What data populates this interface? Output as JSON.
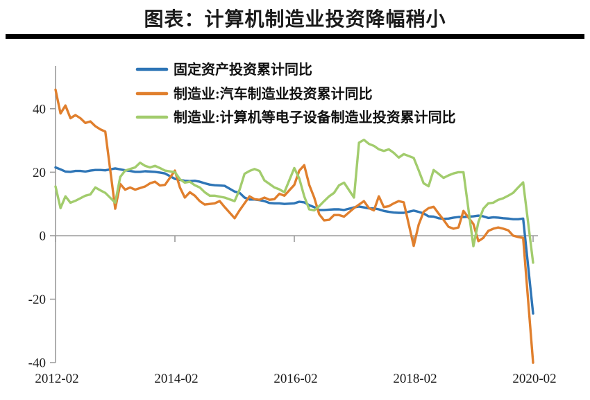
{
  "title": "图表：计算机制造业投资降幅稍小",
  "chart_data": {
    "type": "line",
    "title": "图表：计算机制造业投资降幅稍小",
    "xlabel": "",
    "ylabel": "",
    "ylim": [
      -40,
      50
    ],
    "y_ticks": [
      -40,
      -20,
      0,
      20,
      40
    ],
    "x_ticks": [
      "2012-02",
      "2014-02",
      "2016-02",
      "2018-02",
      "2020-02"
    ],
    "grid": "zero-line-only",
    "legend_position": "top-left-inside",
    "x": [
      "2012-02",
      "2012-03",
      "2012-04",
      "2012-05",
      "2012-06",
      "2012-07",
      "2012-08",
      "2012-09",
      "2012-10",
      "2012-11",
      "2012-12",
      "2013-02",
      "2013-03",
      "2013-04",
      "2013-05",
      "2013-06",
      "2013-07",
      "2013-08",
      "2013-09",
      "2013-10",
      "2013-11",
      "2013-12",
      "2014-02",
      "2014-03",
      "2014-04",
      "2014-05",
      "2014-06",
      "2014-07",
      "2014-08",
      "2014-09",
      "2014-10",
      "2014-11",
      "2014-12",
      "2015-02",
      "2015-03",
      "2015-04",
      "2015-05",
      "2015-06",
      "2015-07",
      "2015-08",
      "2015-09",
      "2015-10",
      "2015-11",
      "2015-12",
      "2016-02",
      "2016-03",
      "2016-04",
      "2016-05",
      "2016-06",
      "2016-07",
      "2016-08",
      "2016-09",
      "2016-10",
      "2016-11",
      "2016-12",
      "2017-02",
      "2017-03",
      "2017-04",
      "2017-05",
      "2017-06",
      "2017-07",
      "2017-08",
      "2017-09",
      "2017-10",
      "2017-11",
      "2017-12",
      "2018-02",
      "2018-03",
      "2018-04",
      "2018-05",
      "2018-06",
      "2018-07",
      "2018-08",
      "2018-09",
      "2018-10",
      "2018-11",
      "2018-12",
      "2019-02",
      "2019-03",
      "2019-04",
      "2019-05",
      "2019-06",
      "2019-07",
      "2019-08",
      "2019-09",
      "2019-10",
      "2019-11",
      "2019-12",
      "2020-02"
    ],
    "series": [
      {
        "name": "固定资产投资累计同比",
        "color": "#2e75b6",
        "values": [
          21.5,
          20.9,
          20.2,
          20.1,
          20.4,
          20.4,
          20.2,
          20.5,
          20.7,
          20.7,
          20.6,
          21.2,
          20.9,
          20.6,
          20.4,
          20.1,
          20.1,
          20.3,
          20.2,
          20.1,
          19.9,
          19.6,
          17.9,
          17.6,
          17.3,
          17.2,
          17.3,
          17.0,
          16.5,
          16.1,
          15.9,
          15.8,
          15.7,
          13.9,
          13.5,
          12.0,
          11.4,
          11.4,
          11.2,
          10.9,
          10.3,
          10.2,
          10.2,
          10.0,
          10.2,
          10.7,
          10.5,
          9.6,
          9.0,
          8.1,
          8.1,
          8.2,
          8.3,
          8.3,
          8.1,
          8.9,
          9.2,
          8.9,
          8.6,
          8.6,
          8.3,
          7.8,
          7.5,
          7.3,
          7.2,
          7.2,
          7.9,
          7.5,
          7.0,
          6.1,
          6.0,
          5.5,
          5.3,
          5.4,
          5.7,
          5.9,
          5.9,
          6.1,
          6.3,
          6.1,
          5.6,
          5.8,
          5.7,
          5.5,
          5.4,
          5.2,
          5.2,
          5.4,
          -24.5
        ]
      },
      {
        "name": "制造业:汽车制造业投资累计同比",
        "color": "#e07f2d",
        "values": [
          46.0,
          38.5,
          41.0,
          37.0,
          38.0,
          37.0,
          35.5,
          36.0,
          34.5,
          33.5,
          32.8,
          8.5,
          16.3,
          14.5,
          15.2,
          14.5,
          15.0,
          15.5,
          16.5,
          17.0,
          15.8,
          16.0,
          20.5,
          15.2,
          12.0,
          13.7,
          12.6,
          10.9,
          9.8,
          10.0,
          10.2,
          10.9,
          9.0,
          5.5,
          8.0,
          10.2,
          12.4,
          11.5,
          11.3,
          12.0,
          11.3,
          11.5,
          13.2,
          12.6,
          16.0,
          20.5,
          22.2,
          16.0,
          12.0,
          6.8,
          4.8,
          5.0,
          6.5,
          6.5,
          6.0,
          8.7,
          9.8,
          10.9,
          8.7,
          8.0,
          12.4,
          9.0,
          9.3,
          10.2,
          10.9,
          10.5,
          -3.2,
          3.5,
          7.5,
          8.7,
          9.1,
          7.0,
          5.0,
          2.8,
          2.2,
          2.6,
          7.8,
          3.7,
          -1.7,
          -0.7,
          1.5,
          2.2,
          2.6,
          2.2,
          1.7,
          0.0,
          -0.4,
          -0.7,
          -40.0
        ]
      },
      {
        "name": "制造业:计算机等电子设备制造业投资累计同比",
        "color": "#a2cc6d",
        "values": [
          15.5,
          8.7,
          12.4,
          10.4,
          11.0,
          11.8,
          12.6,
          13.0,
          15.2,
          14.3,
          13.5,
          10.4,
          18.5,
          20.5,
          21.0,
          21.5,
          23.0,
          22.0,
          21.5,
          22.0,
          21.3,
          20.5,
          20.0,
          17.8,
          16.7,
          17.0,
          15.9,
          15.2,
          13.7,
          12.6,
          12.6,
          12.3,
          12.0,
          10.9,
          14.5,
          19.5,
          20.4,
          21.0,
          20.4,
          17.4,
          16.3,
          15.2,
          14.6,
          13.7,
          21.3,
          18.0,
          12.4,
          8.3,
          8.0,
          9.3,
          10.9,
          12.4,
          13.5,
          15.9,
          16.7,
          12.0,
          29.3,
          30.2,
          28.9,
          28.3,
          27.2,
          26.7,
          27.2,
          26.1,
          24.6,
          25.7,
          24.5,
          20.6,
          16.5,
          15.6,
          20.7,
          19.5,
          18.2,
          19.0,
          19.6,
          20.0,
          20.0,
          -3.3,
          4.3,
          8.5,
          10.2,
          10.4,
          11.3,
          11.8,
          12.6,
          13.5,
          15.2,
          16.8,
          -8.5
        ]
      }
    ]
  }
}
